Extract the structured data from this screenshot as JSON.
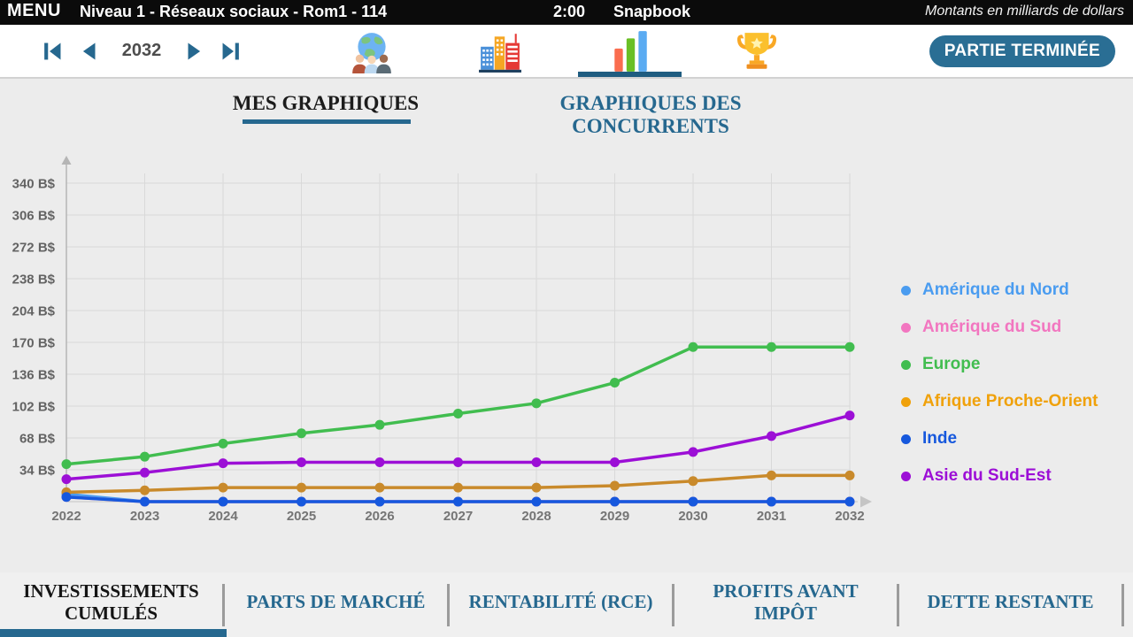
{
  "colors": {
    "accent": "#26688f",
    "button_bg": "#2a6e94",
    "icon_underline": "#1f5c80",
    "topbar_bg": "#0b0b0b",
    "page_bg": "#ececec",
    "grid_line": "#d9d9d9",
    "axis_line": "#b5b5b5",
    "tick_text": "#636363"
  },
  "topbar": {
    "menu": "MENU",
    "title": "Niveau 1 - Réseaux sociaux - Rom1 - 114",
    "timer": "2:00",
    "app": "Snapbook",
    "units": "Montants en milliards de dollars"
  },
  "toolbar": {
    "year": "2032",
    "nav_icons": [
      "first-year-icon",
      "previous-year-icon",
      "next-year-icon",
      "last-year-icon"
    ],
    "section_icons": [
      "world-markets-icon",
      "city-icon",
      "charts-icon",
      "ranking-trophy-icon"
    ],
    "active_section": "charts-icon",
    "end_button": "PARTIE TERMINÉE"
  },
  "tabs": {
    "mine": "MES GRAPHIQUES",
    "competitors": "GRAPHIQUES DES CONCURRENTS"
  },
  "chart_data": {
    "type": "line",
    "title": "INVESTISSEMENTS CUMULÉS",
    "x": [
      2022,
      2023,
      2024,
      2025,
      2026,
      2027,
      2028,
      2029,
      2030,
      2031,
      2032
    ],
    "unit": "B$",
    "y_ticks": [
      34,
      68,
      102,
      136,
      170,
      204,
      238,
      272,
      306,
      340
    ],
    "ylim": [
      0,
      357
    ],
    "grid": true,
    "legend_position": "right",
    "series": [
      {
        "name": "Amérique du Nord",
        "color": "#4a9cf0",
        "values": [
          8,
          0,
          0,
          0,
          0,
          0,
          0,
          0,
          0,
          0,
          0
        ]
      },
      {
        "name": "Amérique du Sud",
        "color": "#f276c0",
        "values": [
          5,
          0,
          0,
          0,
          0,
          0,
          0,
          0,
          0,
          0,
          0
        ]
      },
      {
        "name": "Europe",
        "color": "#41bd4f",
        "values": [
          40,
          48,
          62,
          73,
          82,
          94,
          105,
          127,
          165,
          165,
          165
        ]
      },
      {
        "name": "Afrique Proche-Orient",
        "color": "#c98a2b",
        "legend_color": "#f0a10a",
        "values": [
          10,
          12,
          15,
          15,
          15,
          15,
          15,
          17,
          22,
          28,
          28
        ]
      },
      {
        "name": "Inde",
        "color": "#1658dd",
        "values": [
          5,
          0,
          0,
          0,
          0,
          0,
          0,
          0,
          0,
          0,
          0
        ]
      },
      {
        "name": "Asie du Sud-Est",
        "color": "#9c0fd6",
        "values": [
          24,
          31,
          41,
          42,
          42,
          42,
          42,
          42,
          53,
          70,
          92
        ]
      }
    ]
  },
  "bottom_tabs": {
    "items": [
      {
        "label": "INVESTISSEMENTS CUMULÉS",
        "active": true
      },
      {
        "label": "PARTS DE MARCHÉ",
        "active": false
      },
      {
        "label": "RENTABILITÉ (RCE)",
        "active": false
      },
      {
        "label": "PROFITS AVANT IMPÔT",
        "active": false
      },
      {
        "label": "DETTE RESTANTE",
        "active": false
      }
    ]
  }
}
